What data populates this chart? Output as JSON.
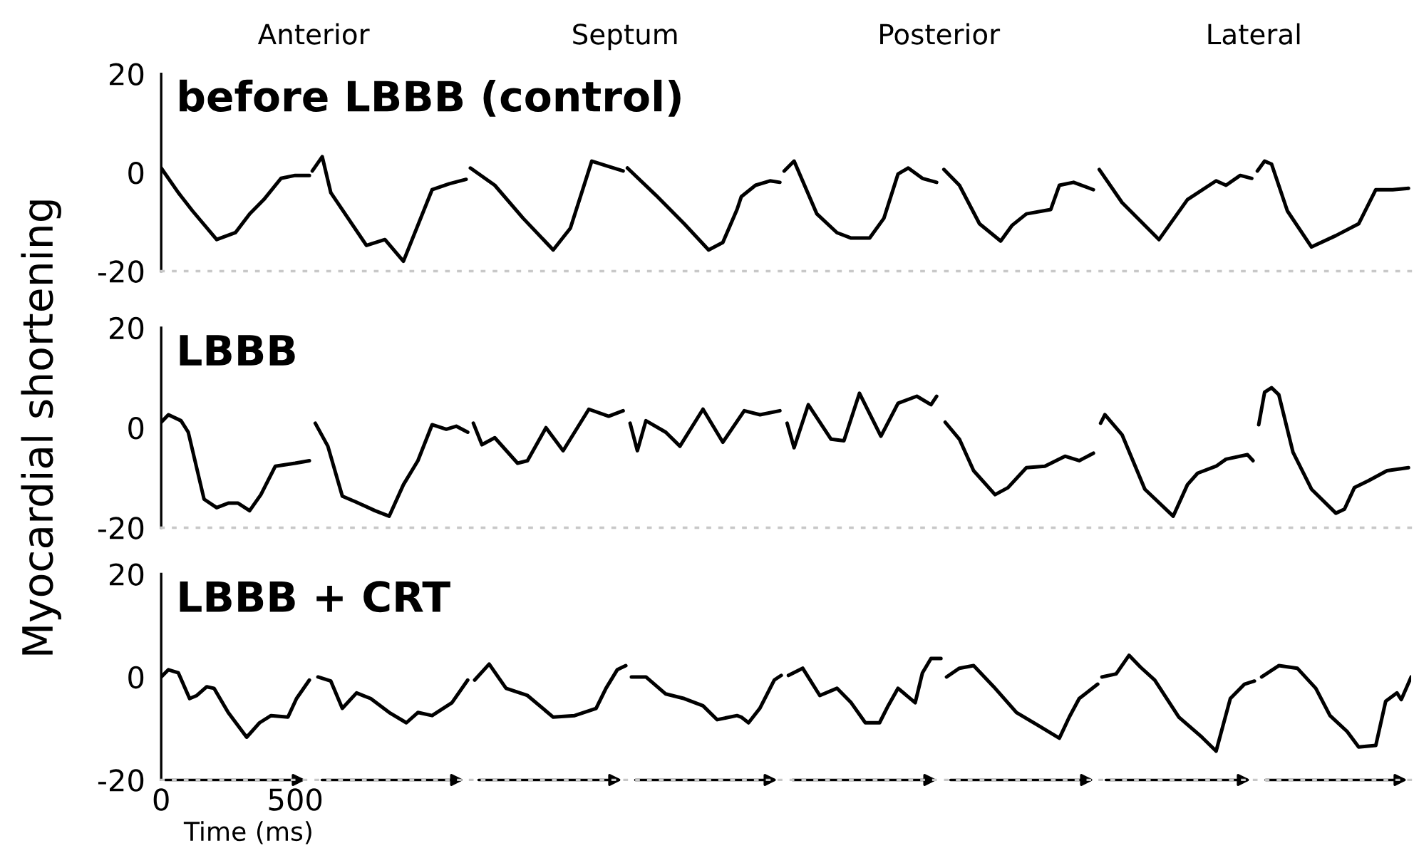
{
  "chart_data": [
    {
      "type": "line",
      "title": "before LBBB (control)",
      "annotations": [
        "Anterior",
        "Septum",
        "Posterior",
        "Lateral"
      ],
      "xlim": [
        0,
        4665
      ],
      "xticks": [
        0,
        500
      ],
      "ylim": [
        -20,
        20
      ],
      "yticks": [
        -20,
        0,
        20
      ],
      "tick_labels": "y",
      "series": [
        {
          "color": "#000000",
          "x": [
            0,
            64,
            117,
            207,
            277,
            330,
            383,
            447,
            500,
            553
          ],
          "values": [
            0.9,
            -4.1,
            -7.8,
            -13.6,
            -12.2,
            -8.4,
            -5.5,
            -1.2,
            -0.6,
            -0.6
          ]
        },
        {
          "color": "#000000",
          "x": [
            564,
            601,
            633,
            766,
            835,
            904,
            1011,
            1075,
            1138
          ],
          "values": [
            0.3,
            3.2,
            -4.1,
            -14.8,
            -13.6,
            -18,
            -3.5,
            -2.3,
            -1.4
          ]
        },
        {
          "color": "#000000",
          "x": [
            1154,
            1245,
            1351,
            1463,
            1527,
            1607,
            1670,
            1724
          ],
          "values": [
            0.9,
            -2.6,
            -9.3,
            -15.7,
            -11.3,
            2.3,
            1.2,
            0.3
          ]
        },
        {
          "color": "#000000",
          "x": [
            1740,
            1846,
            1952,
            2043,
            2096,
            2149,
            2165,
            2218,
            2272,
            2309
          ],
          "values": [
            0.9,
            -4.6,
            -10.4,
            -15.7,
            -14.2,
            -7.5,
            -4.9,
            -2.6,
            -1.7,
            -2
          ]
        },
        {
          "color": "#000000",
          "x": [
            2325,
            2362,
            2447,
            2522,
            2575,
            2644,
            2697,
            2750,
            2788,
            2841,
            2894
          ],
          "values": [
            0.3,
            2.3,
            -8.4,
            -12.2,
            -13.3,
            -13.3,
            -9.3,
            -0.3,
            0.9,
            -1.2,
            -2
          ]
        },
        {
          "color": "#000000",
          "x": [
            2921,
            2979,
            3054,
            3133,
            3176,
            3229,
            3320,
            3352,
            3405,
            3479
          ],
          "values": [
            0.6,
            -2.6,
            -10.4,
            -13.9,
            -10.7,
            -8.4,
            -7.5,
            -2.6,
            -2,
            -3.5
          ]
        },
        {
          "color": "#000000",
          "x": [
            3501,
            3586,
            3724,
            3830,
            3937,
            3974,
            4027,
            4070
          ],
          "values": [
            0.6,
            -6.1,
            -13.6,
            -5.5,
            -1.7,
            -2.6,
            -0.6,
            -1.2
          ]
        },
        {
          "color": "#000000",
          "x": [
            4091,
            4118,
            4144,
            4203,
            4293,
            4384,
            4469,
            4533,
            4596,
            4655
          ],
          "values": [
            0.3,
            2.3,
            1.7,
            -7.8,
            -15.1,
            -12.8,
            -10.4,
            -3.5,
            -3.5,
            -3.2
          ]
        }
      ]
    },
    {
      "type": "line",
      "title": "LBBB",
      "ylabel": "Myocardial shortening",
      "xlim": [
        0,
        4665
      ],
      "xticks": [
        0,
        500
      ],
      "ylim": [
        -20,
        20
      ],
      "yticks": [
        -20,
        0,
        20
      ],
      "tick_labels": "y",
      "series": [
        {
          "color": "#000000",
          "x": [
            0,
            27,
            74,
            101,
            160,
            207,
            250,
            287,
            330,
            372,
            426,
            500,
            553
          ],
          "values": [
            1.1,
            2.6,
            1.4,
            -0.9,
            -14.3,
            -16,
            -15.1,
            -15.1,
            -16.6,
            -13.4,
            -7.7,
            -7.1,
            -6.6
          ]
        },
        {
          "color": "#000000",
          "x": [
            575,
            622,
            676,
            729,
            798,
            851,
            904,
            958,
            1011,
            1064,
            1101,
            1144
          ],
          "values": [
            0.9,
            -3.7,
            -13.7,
            -14.9,
            -16.6,
            -17.7,
            -11.4,
            -6.6,
            0.6,
            -0.3,
            0.3,
            -0.9
          ]
        },
        {
          "color": "#000000",
          "x": [
            1165,
            1197,
            1245,
            1330,
            1367,
            1436,
            1500,
            1596,
            1670,
            1724
          ],
          "values": [
            0.9,
            -3.4,
            -2,
            -7.1,
            -6.6,
            0,
            -4.6,
            3.7,
            2.3,
            3.4
          ]
        },
        {
          "color": "#000000",
          "x": [
            1750,
            1777,
            1809,
            1883,
            1936,
            2022,
            2096,
            2176,
            2235,
            2309
          ],
          "values": [
            0.9,
            -4.6,
            1.4,
            -0.9,
            -3.7,
            3.7,
            -2.9,
            3.4,
            2.6,
            3.4
          ]
        },
        {
          "color": "#000000",
          "x": [
            2336,
            2362,
            2415,
            2500,
            2548,
            2606,
            2686,
            2750,
            2820,
            2873,
            2894
          ],
          "values": [
            0.9,
            -4,
            4.6,
            -2.3,
            -2.6,
            6.9,
            -1.7,
            4.9,
            6.3,
            4.6,
            6.3
          ]
        },
        {
          "color": "#000000",
          "x": [
            2926,
            2979,
            3032,
            3112,
            3160,
            3229,
            3298,
            3373,
            3426,
            3479
          ],
          "values": [
            1.1,
            -2.3,
            -8.6,
            -13.4,
            -12,
            -8,
            -7.7,
            -5.7,
            -6.6,
            -5.1
          ]
        },
        {
          "color": "#000000",
          "x": [
            3506,
            3522,
            3586,
            3671,
            3777,
            3830,
            3868,
            3937,
            3974,
            4054,
            4075
          ],
          "values": [
            0.9,
            2.6,
            -1.4,
            -12.3,
            -17.7,
            -11.4,
            -9.1,
            -7.7,
            -6.3,
            -5.4,
            -6.6
          ]
        },
        {
          "color": "#000000",
          "x": [
            4096,
            4118,
            4144,
            4171,
            4224,
            4293,
            4384,
            4416,
            4453,
            4506,
            4575,
            4655
          ],
          "values": [
            0.6,
            7.1,
            8,
            6.6,
            -4.9,
            -12.3,
            -17.1,
            -16.3,
            -12,
            -10.6,
            -8.6,
            -8
          ]
        }
      ]
    },
    {
      "type": "line",
      "title": "LBBB + CRT",
      "xlabel": "Time (ms)",
      "xlim": [
        0,
        4665
      ],
      "xticks": [
        0,
        500
      ],
      "ylim": [
        -20,
        20
      ],
      "yticks": [
        -20,
        0,
        20
      ],
      "series": [
        {
          "color": "#000000",
          "x": [
            0,
            27,
            64,
            106,
            133,
            170,
            197,
            250,
            319,
            367,
            410,
            473,
            505,
            553
          ],
          "values": [
            0,
            1.4,
            0.8,
            -4.2,
            -3.6,
            -1.9,
            -2.2,
            -6.9,
            -11.7,
            -8.9,
            -7.5,
            -7.8,
            -4.2,
            -0.6
          ]
        },
        {
          "color": "#000000",
          "x": [
            585,
            633,
            676,
            729,
            782,
            851,
            915,
            958,
            1011,
            1085,
            1144
          ],
          "values": [
            0,
            -0.8,
            -6.1,
            -3.1,
            -4.2,
            -6.9,
            -8.9,
            -6.9,
            -7.5,
            -5,
            -0.6
          ]
        },
        {
          "color": "#000000",
          "x": [
            1170,
            1224,
            1287,
            1367,
            1463,
            1543,
            1623,
            1660,
            1702,
            1734
          ],
          "values": [
            -0.6,
            2.5,
            -2.2,
            -3.6,
            -7.8,
            -7.5,
            -6.1,
            -2.2,
            1.4,
            2.2
          ]
        },
        {
          "color": "#000000",
          "x": [
            1755,
            1809,
            1883,
            1952,
            2022,
            2075,
            2149,
            2165,
            2192,
            2234,
            2288,
            2314
          ],
          "values": [
            0,
            0,
            -3.3,
            -4.2,
            -5.6,
            -8.3,
            -7.5,
            -7.8,
            -8.9,
            -6.1,
            -0.6,
            0.3
          ]
        },
        {
          "color": "#000000",
          "x": [
            2341,
            2394,
            2458,
            2522,
            2575,
            2628,
            2681,
            2713,
            2750,
            2814,
            2841,
            2873,
            2910
          ],
          "values": [
            0.3,
            1.7,
            -3.6,
            -2.2,
            -5,
            -8.9,
            -8.9,
            -5.6,
            -2.2,
            -5,
            0.8,
            3.6,
            3.6
          ]
        },
        {
          "color": "#000000",
          "x": [
            2931,
            2979,
            3032,
            3107,
            3192,
            3266,
            3352,
            3389,
            3426,
            3495
          ],
          "values": [
            0,
            1.7,
            2.2,
            -1.9,
            -6.9,
            -9.2,
            -11.9,
            -7.8,
            -4.2,
            -1.4
          ]
        },
        {
          "color": "#000000",
          "x": [
            3511,
            3564,
            3612,
            3655,
            3708,
            3798,
            3884,
            3937,
            3990,
            4043,
            4080
          ],
          "values": [
            0,
            0.6,
            4.2,
            1.9,
            -0.6,
            -7.8,
            -11.7,
            -14.4,
            -4.2,
            -1.4,
            -0.8
          ]
        },
        {
          "color": "#000000",
          "x": [
            4107,
            4171,
            4240,
            4309,
            4362,
            4426,
            4469,
            4533,
            4570,
            4612,
            4628,
            4665
          ],
          "values": [
            0,
            2.2,
            1.7,
            -2.2,
            -7.5,
            -10.6,
            -13.6,
            -13.3,
            -4.7,
            -3.1,
            -4.4,
            0
          ]
        }
      ]
    }
  ]
}
